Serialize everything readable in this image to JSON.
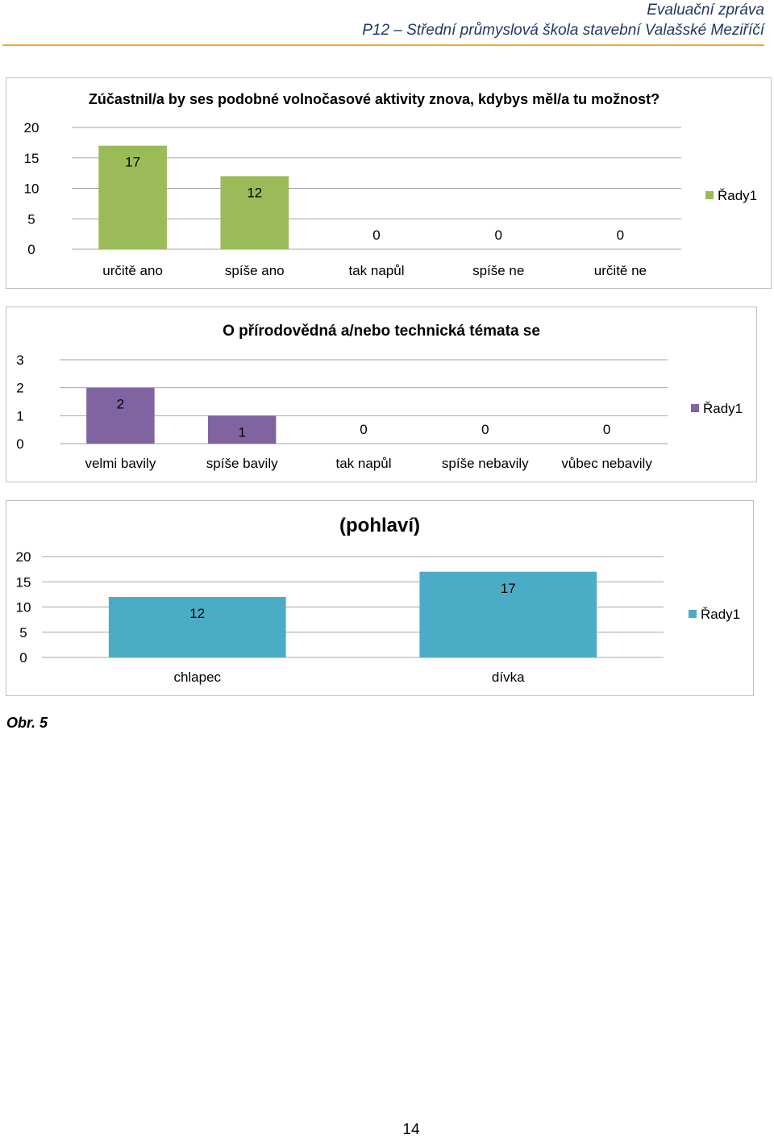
{
  "header": {
    "title": "Evaluační zpráva",
    "subtitle": "P12 – Střední průmyslová škola stavební Valašské Meziříčí"
  },
  "chart_data": [
    {
      "type": "bar",
      "title": "Zúčastnil/a by ses podobné volnočasové aktivity znova, kdybys měl/a tu možnost?",
      "categories": [
        "určitě ano",
        "spíše ano",
        "tak napůl",
        "spíše ne",
        "určitě ne"
      ],
      "series": [
        {
          "name": "Řady1",
          "values": [
            17,
            12,
            0,
            0,
            0
          ]
        }
      ],
      "yticks": [
        0,
        5,
        10,
        15,
        20
      ],
      "ylim": [
        0,
        20
      ],
      "color": "#9bbb59",
      "grid": true,
      "legend": "right"
    },
    {
      "type": "bar",
      "title": "O přírodovědná a/nebo technická témata se",
      "categories": [
        "velmi bavily",
        "spíše bavily",
        "tak napůl",
        "spíše nebavily",
        "vůbec nebavily"
      ],
      "series": [
        {
          "name": "Řady1",
          "values": [
            2,
            1,
            0,
            0,
            0
          ]
        }
      ],
      "yticks": [
        0,
        1,
        2,
        3
      ],
      "ylim": [
        0,
        3
      ],
      "color": "#8064a2",
      "grid": true,
      "legend": "right"
    },
    {
      "type": "bar",
      "title": "(pohlaví)",
      "categories": [
        "chlapec",
        "dívka"
      ],
      "series": [
        {
          "name": "Řady1",
          "values": [
            12,
            17
          ]
        }
      ],
      "yticks": [
        0,
        5,
        10,
        15,
        20
      ],
      "ylim": [
        0,
        20
      ],
      "color": "#4bacc6",
      "grid": true,
      "legend": "right"
    }
  ],
  "caption": "Obr. 5",
  "page_number": "14"
}
